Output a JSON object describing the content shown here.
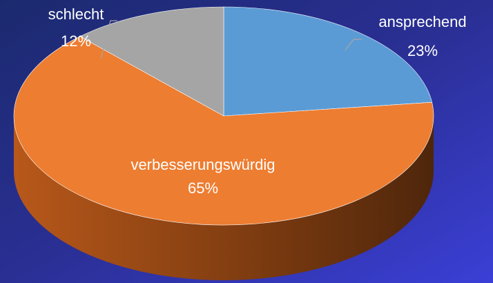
{
  "chart_data": {
    "type": "pie",
    "categories": [
      "ansprechend",
      "verbesserungswürdig",
      "schlecht"
    ],
    "values": [
      23,
      65,
      12
    ],
    "value_labels": [
      "23%",
      "65%",
      "12%"
    ],
    "colors": [
      "#5b9bd5",
      "#ed7d31",
      "#a5a5a5"
    ]
  }
}
